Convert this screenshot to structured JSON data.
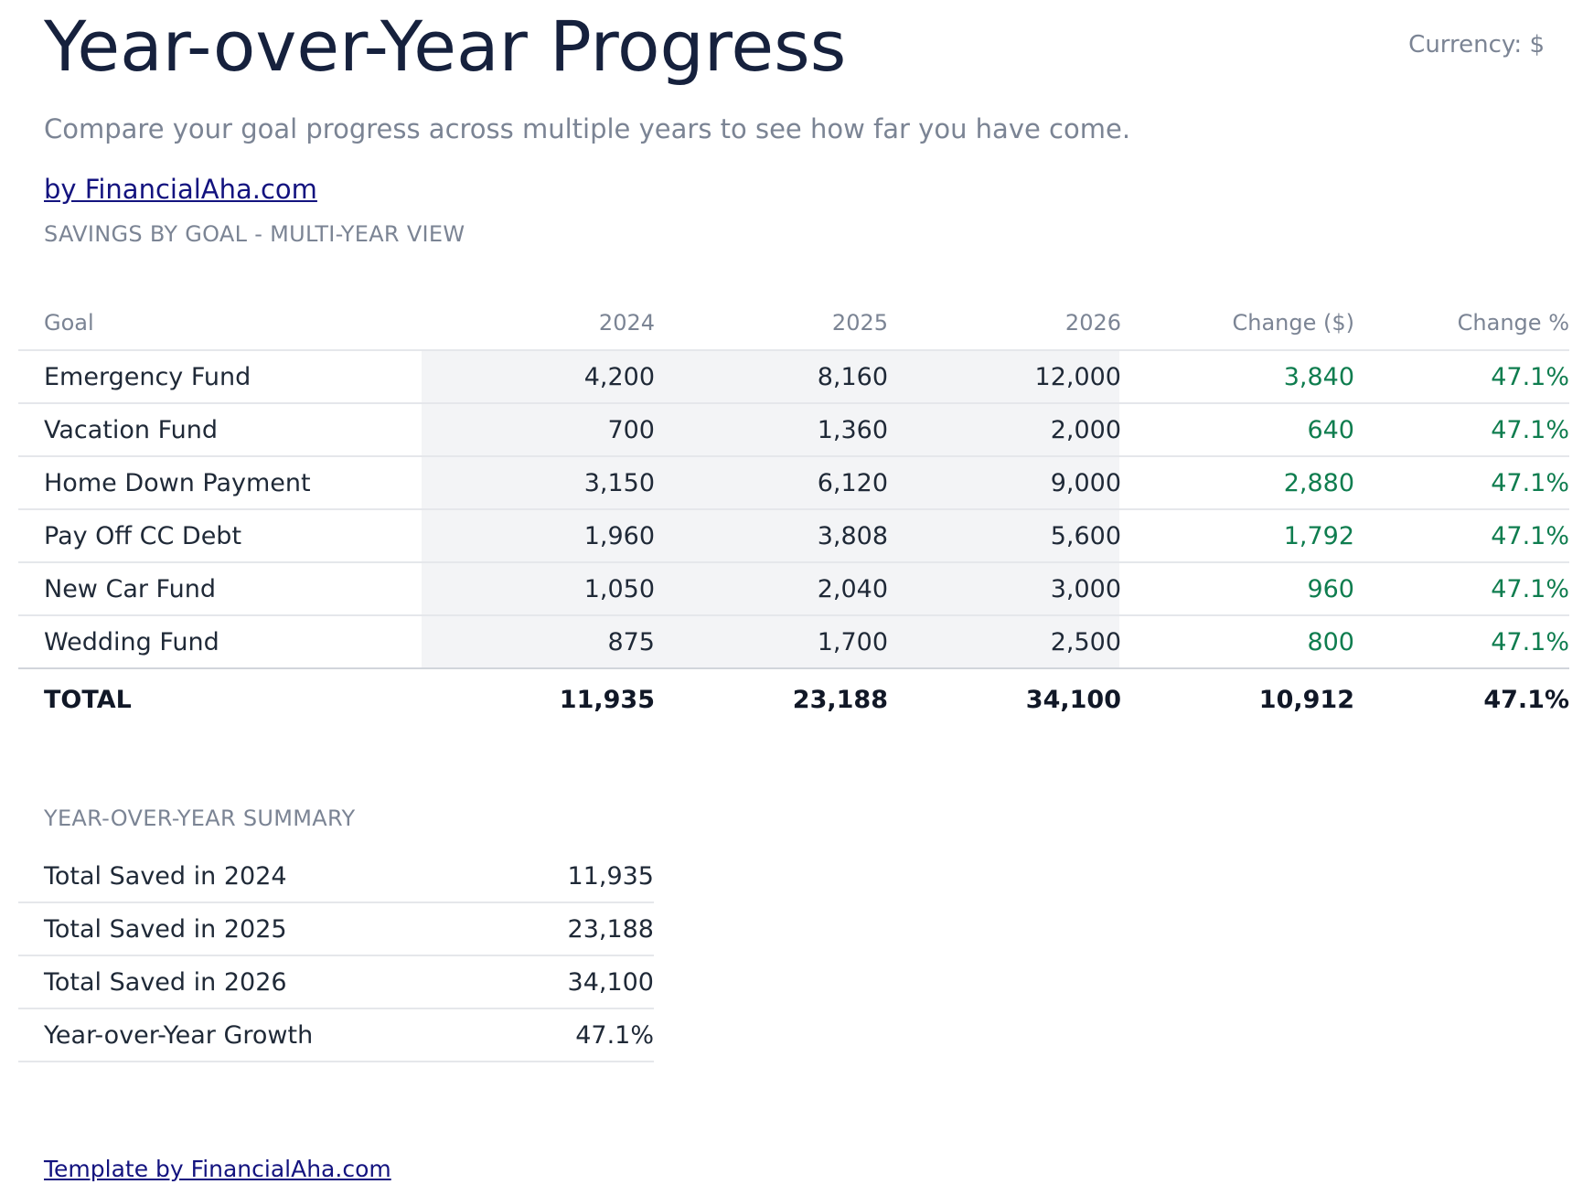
{
  "header": {
    "title": "Year-over-Year Progress",
    "currency": "Currency: $",
    "subtitle": "Compare your goal progress across multiple years to see how far you have come.",
    "brand_link": "by FinancialAha.com"
  },
  "goals_section": {
    "label": "SAVINGS BY GOAL - MULTI-YEAR VIEW",
    "columns": [
      "Goal",
      "2024",
      "2025",
      "2026",
      "Change ($)",
      "Change %"
    ],
    "rows": [
      {
        "goal": "Emergency Fund",
        "y2024": "4,200",
        "y2025": "8,160",
        "y2026": "12,000",
        "change": "3,840",
        "change_pct": "47.1%"
      },
      {
        "goal": "Vacation Fund",
        "y2024": "700",
        "y2025": "1,360",
        "y2026": "2,000",
        "change": "640",
        "change_pct": "47.1%"
      },
      {
        "goal": "Home Down Payment",
        "y2024": "3,150",
        "y2025": "6,120",
        "y2026": "9,000",
        "change": "2,880",
        "change_pct": "47.1%"
      },
      {
        "goal": "Pay Off CC Debt",
        "y2024": "1,960",
        "y2025": "3,808",
        "y2026": "5,600",
        "change": "1,792",
        "change_pct": "47.1%"
      },
      {
        "goal": "New Car Fund",
        "y2024": "1,050",
        "y2025": "2,040",
        "y2026": "3,000",
        "change": "960",
        "change_pct": "47.1%"
      },
      {
        "goal": "Wedding Fund",
        "y2024": "875",
        "y2025": "1,700",
        "y2026": "2,500",
        "change": "800",
        "change_pct": "47.1%"
      }
    ],
    "total": {
      "goal": "TOTAL",
      "y2024": "11,935",
      "y2025": "23,188",
      "y2026": "34,100",
      "change": "10,912",
      "change_pct": "47.1%"
    }
  },
  "summary_section": {
    "label": "YEAR-OVER-YEAR SUMMARY",
    "rows": [
      {
        "label": "Total Saved in 2024",
        "value": "11,935"
      },
      {
        "label": "Total Saved in 2025",
        "value": "23,188"
      },
      {
        "label": "Total Saved in 2026",
        "value": "34,100"
      },
      {
        "label": "Year-over-Year Growth",
        "value": "47.1%"
      }
    ]
  },
  "footer": {
    "link": "Template by FinancialAha.com"
  },
  "colors": {
    "title": "#16213d",
    "muted": "#7b8494",
    "positive": "#0f7d4f",
    "link": "#13137f",
    "shade": "#f3f4f6"
  }
}
